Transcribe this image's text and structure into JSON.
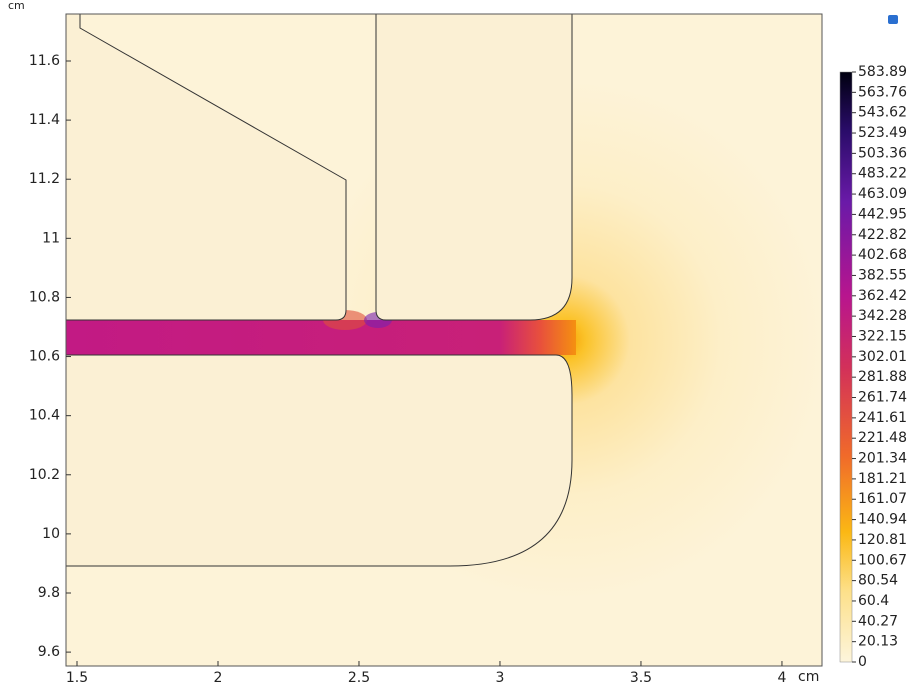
{
  "chart_data": {
    "type": "field",
    "x_unit": "cm",
    "y_unit": "cm",
    "xlim": [
      1.461,
      4.142
    ],
    "ylim": [
      9.553,
      11.759
    ],
    "xticks": [
      1.5,
      2,
      2.5,
      3,
      3.5,
      4
    ],
    "yticks": [
      9.6,
      9.8,
      10,
      10.2,
      10.4,
      10.6,
      10.8,
      11,
      11.2,
      11.4,
      11.6
    ],
    "colorbar": {
      "lim": [
        0,
        583.89
      ],
      "ticks": [
        0,
        20.13,
        40.27,
        60.4,
        80.54,
        100.67,
        120.81,
        140.94,
        161.07,
        181.21,
        201.34,
        221.48,
        241.61,
        261.74,
        281.88,
        302.01,
        322.15,
        342.28,
        362.42,
        382.55,
        402.68,
        422.82,
        442.95,
        463.09,
        483.22,
        503.36,
        523.49,
        543.62,
        563.76,
        583.89
      ]
    }
  }
}
